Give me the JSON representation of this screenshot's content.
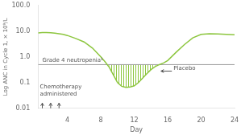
{
  "chart_data": {
    "type": "line",
    "xlabel": "Day",
    "ylabel": "Log ANC in Cycle 1, × 10⁹/L",
    "log": "y",
    "xlim": [
      0.5,
      24
    ],
    "ylim": [
      0.01,
      100.0
    ],
    "xticks": [
      4,
      8,
      12,
      16,
      20,
      24
    ],
    "yticks": [
      0.01,
      0.1,
      {
        "value": 1.0,
        "label": "1.0"
      },
      {
        "value": 10.0,
        "label": "10.0"
      },
      {
        "value": 100.0,
        "label": "100.0"
      }
    ],
    "grid": false,
    "color": "#8dc63f",
    "x": [
      0.5,
      1.0,
      1.5,
      2.0,
      2.5,
      3.0,
      3.5,
      4.0,
      5.0,
      6.0,
      7.0,
      8.0,
      8.5,
      9.0,
      9.5,
      10.0,
      10.5,
      11.0,
      11.5,
      12.0,
      12.5,
      13.0,
      13.5,
      14.0,
      14.5,
      15.0,
      15.5,
      16.0,
      17.0,
      18.0,
      19.0,
      20.0,
      21.0,
      22.0,
      23.0,
      24.0
    ],
    "values": [
      8.5,
      8.8,
      8.9,
      8.7,
      8.4,
      8.0,
      7.5,
      6.8,
      5.2,
      3.8,
      2.2,
      1.0,
      0.65,
      0.4,
      0.2,
      0.1,
      0.072,
      0.065,
      0.067,
      0.075,
      0.1,
      0.15,
      0.22,
      0.32,
      0.42,
      0.5,
      0.58,
      0.72,
      1.5,
      3.0,
      5.5,
      7.5,
      8.0,
      7.8,
      7.5,
      7.2
    ],
    "threshold": {
      "y": 0.5,
      "color": "#999999",
      "fill_color": "#8dc63f"
    },
    "annotations": [
      {
        "text": "Grade 4 neutropenia¹",
        "x": 1.0,
        "y": 0.56
      },
      {
        "text": "Placebo",
        "x": 16.7,
        "y": 0.28
      },
      {
        "text": "Chemotherapy\nadministered",
        "x": 0.7,
        "y": 0.028
      }
    ],
    "arrows": [
      {
        "from": [
          16.5,
          0.28
        ],
        "to": [
          15.2,
          0.28
        ]
      },
      {
        "from": [
          1,
          0.01
        ],
        "to": [
          1,
          0.016
        ]
      },
      {
        "from": [
          2,
          0.01
        ],
        "to": [
          2,
          0.016
        ]
      },
      {
        "from": [
          3,
          0.01
        ],
        "to": [
          3,
          0.016
        ]
      }
    ]
  }
}
